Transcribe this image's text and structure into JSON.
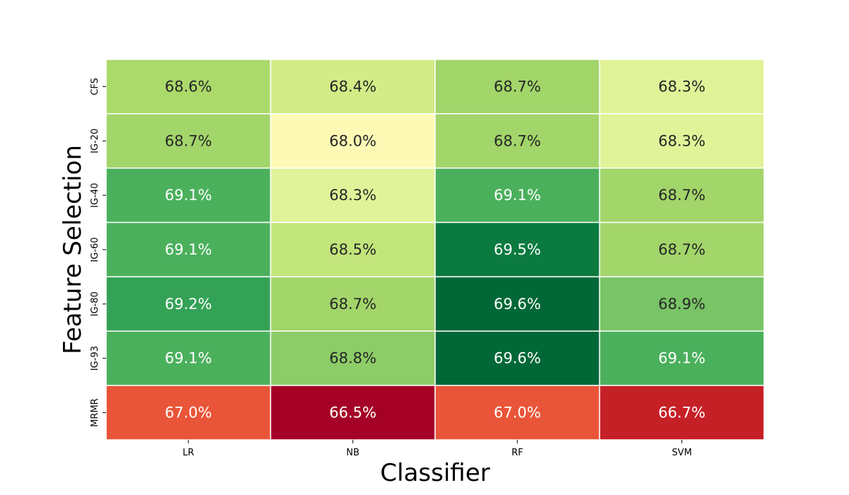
{
  "chart_data": {
    "type": "heatmap",
    "title": "",
    "xlabel": "Classifier",
    "ylabel": "Feature Selection",
    "x_categories": [
      "LR",
      "NB",
      "RF",
      "SVM"
    ],
    "y_categories": [
      "CFS",
      "IG-20",
      "IG-40",
      "IG-60",
      "IG-80",
      "IG-93",
      "MRMR"
    ],
    "values": [
      [
        68.6,
        68.4,
        68.7,
        68.3
      ],
      [
        68.7,
        68.0,
        68.7,
        68.3
      ],
      [
        69.1,
        68.3,
        69.1,
        68.7
      ],
      [
        69.1,
        68.5,
        69.5,
        68.7
      ],
      [
        69.2,
        68.7,
        69.6,
        68.9
      ],
      [
        69.1,
        68.8,
        69.6,
        69.1
      ],
      [
        67.0,
        66.5,
        67.0,
        66.7
      ]
    ],
    "cells": [
      [
        {
          "label": "68.6%",
          "color": "#abd96a",
          "text_color": "#262626"
        },
        {
          "label": "68.4%",
          "color": "#d3ec87",
          "text_color": "#262626"
        },
        {
          "label": "68.7%",
          "color": "#a2d56a",
          "text_color": "#262626"
        },
        {
          "label": "68.3%",
          "color": "#e0f398",
          "text_color": "#262626"
        }
      ],
      [
        {
          "label": "68.7%",
          "color": "#a2d56a",
          "text_color": "#262626"
        },
        {
          "label": "68.0%",
          "color": "#fefab6",
          "text_color": "#262626"
        },
        {
          "label": "68.7%",
          "color": "#a2d56a",
          "text_color": "#262626"
        },
        {
          "label": "68.3%",
          "color": "#e0f398",
          "text_color": "#262626"
        }
      ],
      [
        {
          "label": "69.1%",
          "color": "#4bb05c",
          "text_color": "#ffffff"
        },
        {
          "label": "68.3%",
          "color": "#e0f398",
          "text_color": "#262626"
        },
        {
          "label": "69.1%",
          "color": "#4bb05c",
          "text_color": "#ffffff"
        },
        {
          "label": "68.7%",
          "color": "#a2d56a",
          "text_color": "#262626"
        }
      ],
      [
        {
          "label": "69.1%",
          "color": "#4bb05c",
          "text_color": "#ffffff"
        },
        {
          "label": "68.5%",
          "color": "#c2e57b",
          "text_color": "#262626"
        },
        {
          "label": "69.5%",
          "color": "#0a7a40",
          "text_color": "#ffffff"
        },
        {
          "label": "68.7%",
          "color": "#a2d56a",
          "text_color": "#262626"
        }
      ],
      [
        {
          "label": "69.2%",
          "color": "#34a256",
          "text_color": "#ffffff"
        },
        {
          "label": "68.7%",
          "color": "#a2d56a",
          "text_color": "#262626"
        },
        {
          "label": "69.6%",
          "color": "#006837",
          "text_color": "#ffffff"
        },
        {
          "label": "68.9%",
          "color": "#78c466",
          "text_color": "#262626"
        }
      ],
      [
        {
          "label": "69.1%",
          "color": "#4bb05c",
          "text_color": "#ffffff"
        },
        {
          "label": "68.8%",
          "color": "#8ccd67",
          "text_color": "#262626"
        },
        {
          "label": "69.6%",
          "color": "#006837",
          "text_color": "#ffffff"
        },
        {
          "label": "69.1%",
          "color": "#4bb05c",
          "text_color": "#ffffff"
        }
      ],
      [
        {
          "label": "67.0%",
          "color": "#e95538",
          "text_color": "#ffffff"
        },
        {
          "label": "66.5%",
          "color": "#a50026",
          "text_color": "#ffffff"
        },
        {
          "label": "67.0%",
          "color": "#e95538",
          "text_color": "#ffffff"
        },
        {
          "label": "66.7%",
          "color": "#c62027",
          "text_color": "#ffffff"
        }
      ]
    ],
    "colormap": "RdYlGn",
    "colorbar": false,
    "grid": true,
    "legend": false
  }
}
